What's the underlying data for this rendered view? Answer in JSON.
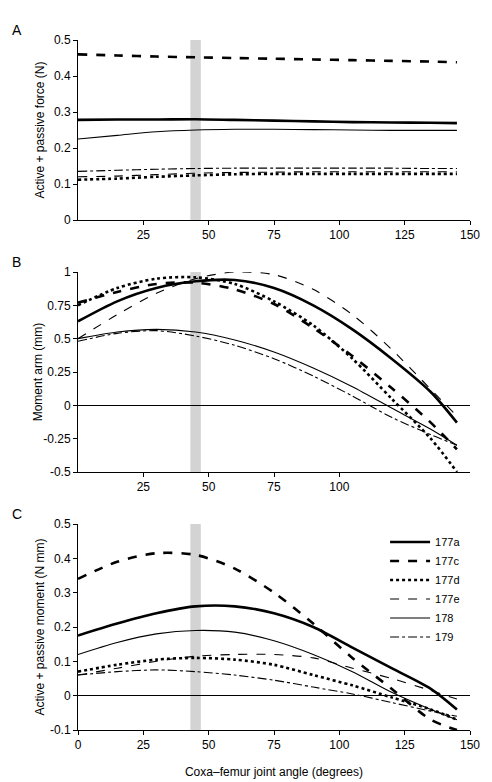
{
  "chart_data": [
    {
      "type": "line",
      "title": "A",
      "ylabel": "Active + passive force (N)",
      "x": [
        0,
        15,
        30,
        45,
        60,
        75,
        90,
        105,
        120,
        135,
        145
      ],
      "xlim": [
        0,
        150
      ],
      "xticks": [
        25,
        50,
        75,
        100,
        125,
        150
      ],
      "ylim": [
        0,
        0.5
      ],
      "yticks": [
        0,
        0.1,
        0.2,
        0.3,
        0.4,
        0.5
      ],
      "grid": false,
      "band": [
        43,
        47
      ],
      "series": [
        {
          "name": "177a",
          "color": "#000000",
          "line_style": "solid-thick",
          "values": [
            0.278,
            0.279,
            0.279,
            0.28,
            0.278,
            0.276,
            0.274,
            0.272,
            0.271,
            0.27,
            0.269
          ]
        },
        {
          "name": "177c",
          "color": "#000000",
          "line_style": "dash-thick",
          "values": [
            0.46,
            0.457,
            0.454,
            0.452,
            0.45,
            0.448,
            0.446,
            0.444,
            0.442,
            0.44,
            0.438
          ]
        },
        {
          "name": "177d",
          "color": "#000000",
          "line_style": "dot-thick",
          "values": [
            0.112,
            0.115,
            0.12,
            0.124,
            0.127,
            0.128,
            0.128,
            0.128,
            0.128,
            0.128,
            0.128
          ]
        },
        {
          "name": "177e",
          "color": "#000000",
          "line_style": "dash",
          "values": [
            0.12,
            0.122,
            0.126,
            0.13,
            0.132,
            0.133,
            0.134,
            0.134,
            0.134,
            0.134,
            0.134
          ]
        },
        {
          "name": "178",
          "color": "#000000",
          "line_style": "solid",
          "values": [
            0.225,
            0.235,
            0.245,
            0.25,
            0.252,
            0.252,
            0.251,
            0.25,
            0.249,
            0.249,
            0.249
          ]
        },
        {
          "name": "179",
          "color": "#000000",
          "line_style": "dashdot",
          "values": [
            0.135,
            0.138,
            0.141,
            0.143,
            0.144,
            0.144,
            0.144,
            0.144,
            0.144,
            0.143,
            0.143
          ]
        }
      ]
    },
    {
      "type": "line",
      "title": "B",
      "ylabel": "Moment arm (mm)",
      "x": [
        0,
        15,
        30,
        45,
        60,
        75,
        90,
        105,
        120,
        135,
        145
      ],
      "xlim": [
        0,
        150
      ],
      "xticks": [
        25,
        50,
        75,
        100
      ],
      "ylim": [
        -0.5,
        1
      ],
      "yticks": [
        -0.5,
        -0.25,
        0,
        0.25,
        0.5,
        0.75,
        1
      ],
      "grid": false,
      "band": [
        43,
        47
      ],
      "series": [
        {
          "name": "177a",
          "color": "#000000",
          "line_style": "solid-thick",
          "values": [
            0.63,
            0.78,
            0.88,
            0.93,
            0.94,
            0.88,
            0.75,
            0.57,
            0.35,
            0.1,
            -0.13
          ]
        },
        {
          "name": "177c",
          "color": "#000000",
          "line_style": "dash-thick",
          "values": [
            0.77,
            0.85,
            0.91,
            0.92,
            0.87,
            0.76,
            0.58,
            0.37,
            0.13,
            -0.13,
            -0.33
          ]
        },
        {
          "name": "177d",
          "color": "#000000",
          "line_style": "dot-thick",
          "values": [
            0.75,
            0.88,
            0.95,
            0.96,
            0.91,
            0.78,
            0.6,
            0.35,
            0.05,
            -0.25,
            -0.5
          ]
        },
        {
          "name": "177e",
          "color": "#000000",
          "line_style": "dash",
          "values": [
            0.5,
            0.68,
            0.84,
            0.95,
            1.0,
            0.98,
            0.87,
            0.68,
            0.42,
            0.12,
            -0.08
          ]
        },
        {
          "name": "178",
          "color": "#000000",
          "line_style": "solid",
          "values": [
            0.5,
            0.55,
            0.57,
            0.55,
            0.49,
            0.4,
            0.28,
            0.14,
            -0.02,
            -0.18,
            -0.3
          ]
        },
        {
          "name": "179",
          "color": "#000000",
          "line_style": "dashdot",
          "values": [
            0.48,
            0.54,
            0.56,
            0.52,
            0.45,
            0.35,
            0.22,
            0.07,
            -0.09,
            -0.22,
            -0.3
          ]
        }
      ]
    },
    {
      "type": "line",
      "title": "C",
      "ylabel": "Active + passive moment (N mm)",
      "xlabel": "Coxa–femur joint angle (degrees)",
      "x": [
        0,
        15,
        30,
        45,
        60,
        75,
        90,
        105,
        120,
        135,
        145
      ],
      "xlim": [
        0,
        150
      ],
      "xticks": [
        0,
        25,
        50,
        75,
        100,
        125,
        150
      ],
      "ylim": [
        -0.1,
        0.5
      ],
      "yticks": [
        -0.1,
        0,
        0.1,
        0.2,
        0.3,
        0.4,
        0.5
      ],
      "grid": false,
      "band": [
        43,
        47
      ],
      "legend": "upper right",
      "series": [
        {
          "name": "177a",
          "color": "#000000",
          "line_style": "solid-thick",
          "values": [
            0.175,
            0.21,
            0.24,
            0.26,
            0.26,
            0.24,
            0.2,
            0.14,
            0.08,
            0.02,
            -0.04
          ]
        },
        {
          "name": "177c",
          "color": "#000000",
          "line_style": "dash-thick",
          "values": [
            0.34,
            0.39,
            0.415,
            0.41,
            0.37,
            0.3,
            0.21,
            0.11,
            0.02,
            -0.07,
            -0.1
          ]
        },
        {
          "name": "177d",
          "color": "#000000",
          "line_style": "dot-thick",
          "values": [
            0.07,
            0.09,
            0.105,
            0.11,
            0.105,
            0.09,
            0.06,
            0.03,
            -0.005,
            -0.04,
            -0.07
          ]
        },
        {
          "name": "177e",
          "color": "#000000",
          "line_style": "dash",
          "values": [
            0.06,
            0.08,
            0.1,
            0.115,
            0.12,
            0.12,
            0.11,
            0.08,
            0.05,
            0.015,
            -0.01
          ]
        },
        {
          "name": "178",
          "color": "#000000",
          "line_style": "solid",
          "values": [
            0.12,
            0.155,
            0.18,
            0.19,
            0.185,
            0.16,
            0.12,
            0.07,
            0.01,
            -0.04,
            -0.07
          ]
        },
        {
          "name": "179",
          "color": "#000000",
          "line_style": "dashdot",
          "values": [
            0.06,
            0.07,
            0.075,
            0.07,
            0.06,
            0.045,
            0.025,
            0.005,
            -0.02,
            -0.045,
            -0.06
          ]
        }
      ]
    }
  ]
}
